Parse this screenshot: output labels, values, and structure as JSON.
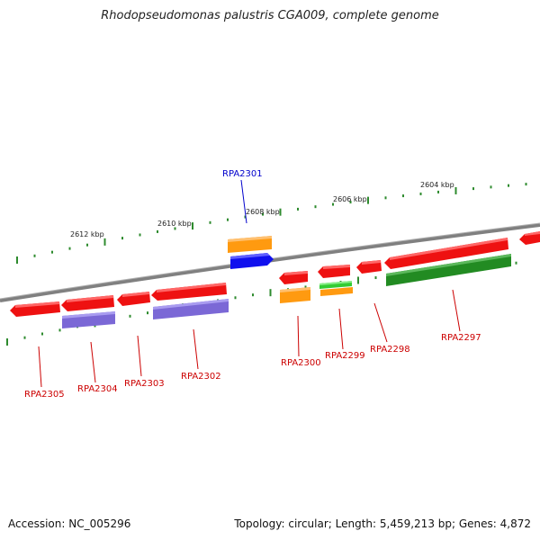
{
  "title": "Rhodopseudomonas palustris CGA009, complete genome",
  "footer": {
    "accession": "Accession: NC_005296",
    "topology": "Topology: circular; Length: 5,459,213 bp; Genes: 4,872"
  },
  "colors": {
    "backbone": "#808080",
    "tick": "#2e8b2e",
    "label_default": "#cc0000",
    "label_highlight": "#0000cc"
  },
  "scale_labels": [
    "2612 kbp",
    "2610 kbp",
    "2608 kbp",
    "2606 kbp",
    "2604 kbp"
  ],
  "genes": [
    {
      "name": "RPA2305",
      "label_color": "#cc0000"
    },
    {
      "name": "RPA2304",
      "label_color": "#cc0000"
    },
    {
      "name": "RPA2303",
      "label_color": "#cc0000"
    },
    {
      "name": "RPA2302",
      "label_color": "#cc0000"
    },
    {
      "name": "RPA2301",
      "label_color": "#0000cc"
    },
    {
      "name": "RPA2300",
      "label_color": "#cc0000"
    },
    {
      "name": "RPA2299",
      "label_color": "#cc0000"
    },
    {
      "name": "RPA2298",
      "label_color": "#cc0000"
    },
    {
      "name": "RPA2297",
      "label_color": "#cc0000"
    }
  ],
  "feature_colors": {
    "red": "#ee1111",
    "purple": "#7b68d6",
    "orange": "#ff9a10",
    "blue": "#1010ee",
    "light_green": "#33cc33",
    "dark_green": "#228b22"
  }
}
